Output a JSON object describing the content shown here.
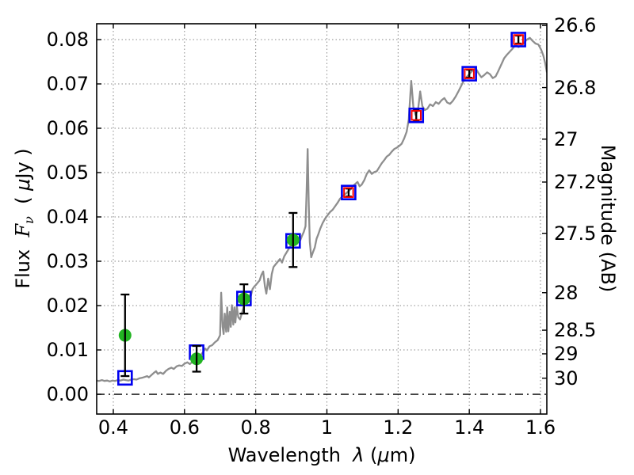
{
  "chart_data": {
    "type": "line+scatter",
    "title": "",
    "xlabel_parts": [
      {
        "t": "Wavelength  ",
        "s": "r"
      },
      {
        "t": "λ",
        "s": "i"
      },
      {
        "t": " (",
        "s": "r"
      },
      {
        "t": "μ",
        "s": "i"
      },
      {
        "t": "m)",
        "s": "r"
      }
    ],
    "ylabel_left_parts": [
      {
        "t": "Flux  ",
        "s": "r"
      },
      {
        "t": "F",
        "s": "fi"
      },
      {
        "t": "ν",
        "s": "sub"
      },
      {
        "t": "  ( ",
        "s": "r"
      },
      {
        "t": "μ",
        "s": "i"
      },
      {
        "t": "Jy )",
        "s": "r"
      }
    ],
    "ylabel_right_parts": [
      {
        "t": "Magnitude (AB)",
        "s": "r"
      }
    ],
    "xlim": [
      0.3533,
      1.6178
    ],
    "ylim": [
      -0.00446,
      0.08357
    ],
    "grid": "dotted",
    "zero_line": {
      "flux": 0.0,
      "style": "dash-dot"
    },
    "x_ticks": [
      {
        "label": "0.4",
        "value": 0.4
      },
      {
        "label": "0.6",
        "value": 0.6
      },
      {
        "label": "0.8",
        "value": 0.8
      },
      {
        "label": "1",
        "value": 1.0
      },
      {
        "label": "1.2",
        "value": 1.2
      },
      {
        "label": "1.4",
        "value": 1.4
      },
      {
        "label": "1.6",
        "value": 1.6
      }
    ],
    "y_ticks_left": [
      {
        "label": "0.00",
        "value": 0.0
      },
      {
        "label": "0.01",
        "value": 0.01
      },
      {
        "label": "0.02",
        "value": 0.02
      },
      {
        "label": "0.03",
        "value": 0.03
      },
      {
        "label": "0.04",
        "value": 0.04
      },
      {
        "label": "0.05",
        "value": 0.05
      },
      {
        "label": "0.06",
        "value": 0.06
      },
      {
        "label": "0.07",
        "value": 0.07
      },
      {
        "label": "0.08",
        "value": 0.08
      }
    ],
    "y_ticks_right": [
      {
        "label": "26.6",
        "mag": 26.6,
        "flux": 0.083176
      },
      {
        "label": "26.8",
        "mag": 26.8,
        "flux": 0.069183
      },
      {
        "label": "27",
        "mag": 27.0,
        "flux": 0.057544
      },
      {
        "label": "27.2",
        "mag": 27.2,
        "flux": 0.047863
      },
      {
        "label": "27.5",
        "mag": 27.5,
        "flux": 0.036308
      },
      {
        "label": "28",
        "mag": 28.0,
        "flux": 0.022909
      },
      {
        "label": "28.5",
        "mag": 28.5,
        "flux": 0.014454
      },
      {
        "label": "29",
        "mag": 29.0,
        "flux": 0.00912
      },
      {
        "label": "30",
        "mag": 30.0,
        "flux": 0.003631
      }
    ],
    "colors": {
      "spectrum": "#8e8e8e",
      "green_circle": "#22b422",
      "blue_square": "#0000f0",
      "red_square": "#f80000",
      "error_bar": "#000000",
      "grid": "#8a8a8a",
      "frame": "#000000"
    },
    "series": {
      "green_circles": [
        {
          "wl": 0.433,
          "flux": 0.0133,
          "err": 0.0092
        },
        {
          "wl": 0.634,
          "flux": 0.008,
          "err": 0.0029
        },
        {
          "wl": 0.767,
          "flux": 0.0215,
          "err": 0.0033
        },
        {
          "wl": 0.905,
          "flux": 0.0348,
          "err": 0.0061
        }
      ],
      "blue_squares": [
        {
          "wl": 0.433,
          "flux": 0.0037
        },
        {
          "wl": 0.634,
          "flux": 0.0095
        },
        {
          "wl": 0.767,
          "flux": 0.0216
        },
        {
          "wl": 0.905,
          "flux": 0.0346
        },
        {
          "wl": 1.061,
          "flux": 0.0455
        },
        {
          "wl": 1.251,
          "flux": 0.0629
        },
        {
          "wl": 1.4,
          "flux": 0.0723
        },
        {
          "wl": 1.538,
          "flux": 0.08
        }
      ],
      "red_squares": [
        {
          "wl": 1.061,
          "flux": 0.0455,
          "err": 0.0009
        },
        {
          "wl": 1.251,
          "flux": 0.0629,
          "err": 0.0011
        },
        {
          "wl": 1.4,
          "flux": 0.0723,
          "err": 0.0009
        },
        {
          "wl": 1.538,
          "flux": 0.08,
          "err": 0.0009
        }
      ],
      "spectrum": [
        [
          0.353,
          0.0031
        ],
        [
          0.36,
          0.003
        ],
        [
          0.368,
          0.0032
        ],
        [
          0.375,
          0.003
        ],
        [
          0.383,
          0.0031
        ],
        [
          0.39,
          0.0029
        ],
        [
          0.398,
          0.0031
        ],
        [
          0.405,
          0.003
        ],
        [
          0.413,
          0.0032
        ],
        [
          0.42,
          0.0031
        ],
        [
          0.428,
          0.0033
        ],
        [
          0.435,
          0.0032
        ],
        [
          0.443,
          0.0031
        ],
        [
          0.45,
          0.0033
        ],
        [
          0.458,
          0.0034
        ],
        [
          0.465,
          0.0033
        ],
        [
          0.473,
          0.0036
        ],
        [
          0.48,
          0.0037
        ],
        [
          0.488,
          0.0039
        ],
        [
          0.495,
          0.0041
        ],
        [
          0.5,
          0.0038
        ],
        [
          0.508,
          0.0044
        ],
        [
          0.515,
          0.0049
        ],
        [
          0.52,
          0.0052
        ],
        [
          0.525,
          0.0046
        ],
        [
          0.532,
          0.0049
        ],
        [
          0.54,
          0.0046
        ],
        [
          0.548,
          0.0053
        ],
        [
          0.555,
          0.0057
        ],
        [
          0.563,
          0.006
        ],
        [
          0.57,
          0.0057
        ],
        [
          0.578,
          0.0063
        ],
        [
          0.585,
          0.0065
        ],
        [
          0.593,
          0.0064
        ],
        [
          0.6,
          0.0069
        ],
        [
          0.608,
          0.0072
        ],
        [
          0.615,
          0.0068
        ],
        [
          0.623,
          0.0074
        ],
        [
          0.63,
          0.0076
        ],
        [
          0.638,
          0.0079
        ],
        [
          0.645,
          0.0088
        ],
        [
          0.653,
          0.0096
        ],
        [
          0.658,
          0.0103
        ],
        [
          0.663,
          0.0099
        ],
        [
          0.67,
          0.0108
        ],
        [
          0.678,
          0.0111
        ],
        [
          0.685,
          0.0117
        ],
        [
          0.693,
          0.0122
        ],
        [
          0.7,
          0.0133
        ],
        [
          0.703,
          0.0229
        ],
        [
          0.707,
          0.0152
        ],
        [
          0.71,
          0.0136
        ],
        [
          0.713,
          0.0182
        ],
        [
          0.717,
          0.0141
        ],
        [
          0.72,
          0.0196
        ],
        [
          0.723,
          0.0142
        ],
        [
          0.727,
          0.0186
        ],
        [
          0.73,
          0.0152
        ],
        [
          0.733,
          0.0201
        ],
        [
          0.737,
          0.0157
        ],
        [
          0.74,
          0.0196
        ],
        [
          0.743,
          0.0162
        ],
        [
          0.747,
          0.0199
        ],
        [
          0.751,
          0.0174
        ],
        [
          0.756,
          0.0169
        ],
        [
          0.761,
          0.0182
        ],
        [
          0.766,
          0.0196
        ],
        [
          0.771,
          0.021
        ],
        [
          0.776,
          0.0217
        ],
        [
          0.781,
          0.0223
        ],
        [
          0.786,
          0.0221
        ],
        [
          0.791,
          0.0237
        ],
        [
          0.796,
          0.0243
        ],
        [
          0.801,
          0.0247
        ],
        [
          0.806,
          0.0252
        ],
        [
          0.811,
          0.0257
        ],
        [
          0.816,
          0.0269
        ],
        [
          0.821,
          0.0277
        ],
        [
          0.826,
          0.0243
        ],
        [
          0.83,
          0.0227
        ],
        [
          0.835,
          0.0261
        ],
        [
          0.84,
          0.0237
        ],
        [
          0.845,
          0.0271
        ],
        [
          0.85,
          0.0287
        ],
        [
          0.856,
          0.0293
        ],
        [
          0.862,
          0.0299
        ],
        [
          0.868,
          0.0305
        ],
        [
          0.874,
          0.0297
        ],
        [
          0.88,
          0.0311
        ],
        [
          0.886,
          0.0319
        ],
        [
          0.892,
          0.0327
        ],
        [
          0.898,
          0.0335
        ],
        [
          0.904,
          0.0344
        ],
        [
          0.91,
          0.0351
        ],
        [
          0.915,
          0.0344
        ],
        [
          0.92,
          0.035
        ],
        [
          0.925,
          0.0347
        ],
        [
          0.93,
          0.0357
        ],
        [
          0.935,
          0.0366
        ],
        [
          0.94,
          0.0379
        ],
        [
          0.943,
          0.0458
        ],
        [
          0.946,
          0.0553
        ],
        [
          0.949,
          0.0428
        ],
        [
          0.952,
          0.0344
        ],
        [
          0.956,
          0.0309
        ],
        [
          0.961,
          0.0321
        ],
        [
          0.966,
          0.0331
        ],
        [
          0.971,
          0.0351
        ],
        [
          0.976,
          0.0361
        ],
        [
          0.981,
          0.0373
        ],
        [
          0.988,
          0.0386
        ],
        [
          0.995,
          0.0396
        ],
        [
          1.002,
          0.0404
        ],
        [
          1.009,
          0.0411
        ],
        [
          1.016,
          0.0416
        ],
        [
          1.023,
          0.0424
        ],
        [
          1.03,
          0.0432
        ],
        [
          1.037,
          0.0441
        ],
        [
          1.044,
          0.0447
        ],
        [
          1.051,
          0.0451
        ],
        [
          1.058,
          0.0456
        ],
        [
          1.065,
          0.0461
        ],
        [
          1.072,
          0.0468
        ],
        [
          1.079,
          0.0474
        ],
        [
          1.086,
          0.0479
        ],
        [
          1.092,
          0.0469
        ],
        [
          1.098,
          0.0473
        ],
        [
          1.105,
          0.0483
        ],
        [
          1.112,
          0.0497
        ],
        [
          1.119,
          0.0505
        ],
        [
          1.126,
          0.0497
        ],
        [
          1.133,
          0.0501
        ],
        [
          1.14,
          0.0503
        ],
        [
          1.147,
          0.0512
        ],
        [
          1.154,
          0.0521
        ],
        [
          1.161,
          0.0528
        ],
        [
          1.168,
          0.0536
        ],
        [
          1.175,
          0.054
        ],
        [
          1.182,
          0.0547
        ],
        [
          1.189,
          0.0553
        ],
        [
          1.196,
          0.0556
        ],
        [
          1.203,
          0.056
        ],
        [
          1.21,
          0.0565
        ],
        [
          1.217,
          0.0577
        ],
        [
          1.224,
          0.0592
        ],
        [
          1.23,
          0.062
        ],
        [
          1.237,
          0.0707
        ],
        [
          1.243,
          0.0648
        ],
        [
          1.249,
          0.063
        ],
        [
          1.256,
          0.0642
        ],
        [
          1.262,
          0.0683
        ],
        [
          1.268,
          0.065
        ],
        [
          1.275,
          0.0641
        ],
        [
          1.282,
          0.0644
        ],
        [
          1.29,
          0.0654
        ],
        [
          1.298,
          0.065
        ],
        [
          1.306,
          0.0659
        ],
        [
          1.314,
          0.0655
        ],
        [
          1.322,
          0.0663
        ],
        [
          1.33,
          0.0668
        ],
        [
          1.338,
          0.0658
        ],
        [
          1.346,
          0.0655
        ],
        [
          1.354,
          0.0662
        ],
        [
          1.362,
          0.0672
        ],
        [
          1.37,
          0.0684
        ],
        [
          1.378,
          0.0697
        ],
        [
          1.386,
          0.071
        ],
        [
          1.394,
          0.0717
        ],
        [
          1.402,
          0.0724
        ],
        [
          1.41,
          0.0731
        ],
        [
          1.418,
          0.0735
        ],
        [
          1.426,
          0.0724
        ],
        [
          1.434,
          0.0715
        ],
        [
          1.442,
          0.072
        ],
        [
          1.45,
          0.0726
        ],
        [
          1.458,
          0.0722
        ],
        [
          1.466,
          0.0713
        ],
        [
          1.474,
          0.0717
        ],
        [
          1.482,
          0.073
        ],
        [
          1.49,
          0.0744
        ],
        [
          1.498,
          0.0758
        ],
        [
          1.506,
          0.0766
        ],
        [
          1.514,
          0.0773
        ],
        [
          1.522,
          0.078
        ],
        [
          1.53,
          0.0788
        ],
        [
          1.538,
          0.0783
        ],
        [
          1.546,
          0.0787
        ],
        [
          1.554,
          0.0793
        ],
        [
          1.562,
          0.08
        ],
        [
          1.57,
          0.0804
        ],
        [
          1.578,
          0.0797
        ],
        [
          1.586,
          0.0791
        ],
        [
          1.594,
          0.0789
        ],
        [
          1.602,
          0.0777
        ],
        [
          1.608,
          0.0764
        ],
        [
          1.613,
          0.0748
        ],
        [
          1.618,
          0.0726
        ]
      ]
    }
  }
}
